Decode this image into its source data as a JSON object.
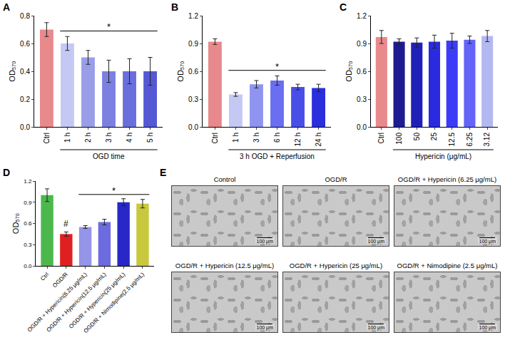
{
  "chart_data": [
    {
      "panel": "A",
      "type": "bar",
      "y_label": "OD₅₇₀",
      "categories": [
        "Ctrl",
        "1 h",
        "2 h",
        "3 h",
        "4 h",
        "5 h"
      ],
      "values": [
        0.7,
        0.6,
        0.5,
        0.4,
        0.4,
        0.4
      ],
      "errors": [
        0.05,
        0.05,
        0.05,
        0.08,
        0.09,
        0.1
      ],
      "colors": [
        "#e8898c",
        "#c4c8f4",
        "#9a9ee8",
        "#7c80e0",
        "#6a6edc",
        "#5458d4"
      ],
      "ylim": [
        0,
        0.8
      ],
      "yticks": [
        {
          "value": 0,
          "label": "0.0"
        },
        0.2,
        0.4,
        0.6,
        0.8
      ],
      "group_label": {
        "text": "OGD time",
        "categories": [
          "1 h",
          "5 h"
        ]
      },
      "annotations": [
        {
          "text": "*",
          "categories": [
            "1 h",
            "5 h"
          ]
        }
      ]
    },
    {
      "panel": "B",
      "type": "bar",
      "y_label": "OD₅₇₀",
      "categories": [
        "Ctrl",
        "1 h",
        "3 h",
        "6 h",
        "12 h",
        "24 h"
      ],
      "values": [
        0.92,
        0.35,
        0.46,
        0.5,
        0.43,
        0.42
      ],
      "errors": [
        0.03,
        0.02,
        0.04,
        0.05,
        0.03,
        0.04
      ],
      "colors": [
        "#e8898c",
        "#c4c8f4",
        "#8f94f0",
        "#6a6ef0",
        "#4a4ee8",
        "#2a2edc"
      ],
      "ylim": [
        0,
        1.2
      ],
      "yticks": [
        {
          "value": 0,
          "label": "0.0"
        },
        0.3,
        0.6,
        0.9,
        1.2
      ],
      "group_label": {
        "text": "3 h OGD + Reperfusion",
        "categories": [
          "1 h",
          "24 h"
        ]
      },
      "annotations": [
        {
          "text": "*",
          "categories": [
            "1 h",
            "24 h"
          ]
        }
      ]
    },
    {
      "panel": "C",
      "type": "bar",
      "y_label": "OD₅₇₀",
      "categories": [
        "Ctrl",
        "100",
        "50",
        "25",
        "12.5",
        "6.25",
        "3.12"
      ],
      "values": [
        0.97,
        0.92,
        0.91,
        0.92,
        0.93,
        0.94,
        0.98
      ],
      "errors": [
        0.07,
        0.03,
        0.05,
        0.07,
        0.08,
        0.04,
        0.06
      ],
      "colors": [
        "#e8898c",
        "#1c1c90",
        "#2020b8",
        "#2a2ae0",
        "#3c3cf8",
        "#6464f8",
        "#b4b8f0"
      ],
      "ylim": [
        0,
        1.2
      ],
      "yticks": [
        {
          "value": 0,
          "label": "0.0"
        },
        0.3,
        0.6,
        0.9,
        1.2
      ],
      "group_label": {
        "text": "Hypericin (μg/mL)",
        "categories": [
          "100",
          "3.12"
        ]
      },
      "annotations": []
    },
    {
      "panel": "D",
      "type": "bar",
      "y_label": "OD₅₇₀",
      "categories": [
        "Ctrl",
        "OGD/R",
        "OGD/R + Hypericin(6.25 μg/mL)",
        "OGD/R + Hypericin(12.5 μg/mL)",
        "OGD/R + Hypericin(25 μg/mL)",
        "OGD/R + Nimodipine(2.5 μg/mL)"
      ],
      "values": [
        1.0,
        0.45,
        0.55,
        0.62,
        0.9,
        0.88
      ],
      "errors": [
        0.09,
        0.03,
        0.02,
        0.04,
        0.05,
        0.06
      ],
      "colors": [
        "#4cb84c",
        "#e02020",
        "#9494e8",
        "#6c6ce0",
        "#2828c8",
        "#c8c83c"
      ],
      "ylim": [
        0,
        1.2
      ],
      "yticks": [
        {
          "value": 0,
          "label": "0.0"
        },
        0.3,
        0.6,
        0.9,
        1.2
      ],
      "annotations": [
        {
          "text": "#",
          "categories": [
            "OGD/R"
          ]
        },
        {
          "text": "*",
          "categories": [
            "OGD/R + Hypericin(6.25 μg/mL)",
            "OGD/R + Nimodipine(2.5 μg/mL)"
          ]
        }
      ]
    }
  ],
  "images": {
    "panel": "E",
    "scale_bar": "100 μm",
    "titles": [
      "Control",
      "OGD/R",
      "OGD/R + Hypericin (6.25 μg/mL)",
      "OGD/R + Hypericin (12.5 μg/mL)",
      "OGD/R + Hypericin (25 μg/mL)",
      "OGD/R + Nimodipine (2.5 μg/mL)"
    ]
  }
}
